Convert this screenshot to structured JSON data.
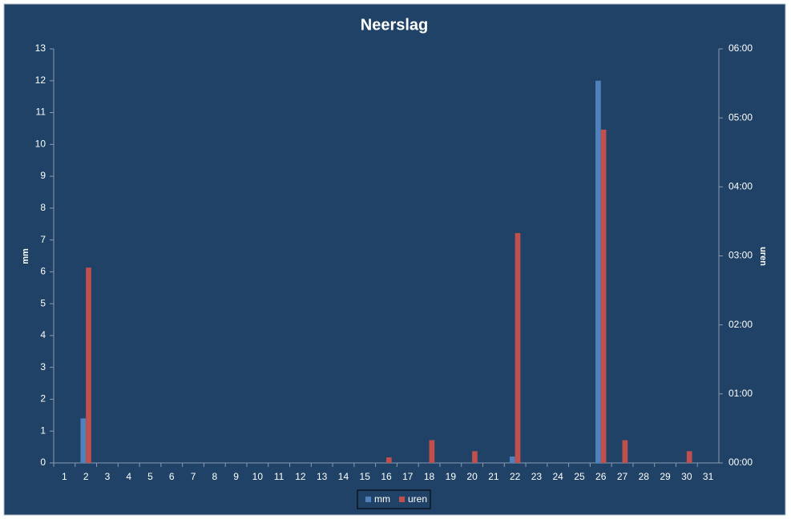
{
  "chart_data": {
    "type": "bar",
    "title": "Neerslag",
    "y_label": "mm",
    "y2_label": "uren",
    "categories": [
      "1",
      "2",
      "3",
      "4",
      "5",
      "6",
      "7",
      "8",
      "9",
      "10",
      "11",
      "12",
      "13",
      "14",
      "15",
      "16",
      "17",
      "18",
      "19",
      "20",
      "21",
      "22",
      "23",
      "24",
      "25",
      "26",
      "27",
      "28",
      "29",
      "30",
      "31"
    ],
    "series": [
      {
        "name": "mm",
        "color": "#4f81bd",
        "values": [
          0,
          1.4,
          0,
          0,
          0,
          0,
          0,
          0,
          0,
          0,
          0,
          0,
          0,
          0,
          0,
          0,
          0,
          0,
          0,
          0,
          0,
          0.2,
          0,
          0,
          0,
          12,
          0,
          0,
          0,
          0,
          0
        ]
      },
      {
        "name": "uren",
        "color": "#c0504d",
        "axis": "y2",
        "values": [
          0,
          2.83,
          0,
          0,
          0,
          0,
          0,
          0,
          0,
          0,
          0,
          0,
          0,
          0,
          0,
          0.08,
          0,
          0.33,
          0,
          0.17,
          0,
          3.33,
          0,
          0,
          0,
          4.83,
          0.33,
          0,
          0,
          0.17,
          0
        ]
      }
    ],
    "ylim": [
      0,
      13
    ],
    "yticks": [
      0,
      1,
      2,
      3,
      4,
      5,
      6,
      7,
      8,
      9,
      10,
      11,
      12,
      13
    ],
    "y2lim": [
      0,
      6
    ],
    "y2ticks": [
      {
        "value": 0,
        "label": "00:00"
      },
      {
        "value": 1,
        "label": "01:00"
      },
      {
        "value": 2,
        "label": "02:00"
      },
      {
        "value": 3,
        "label": "03:00"
      },
      {
        "value": 4,
        "label": "04:00"
      },
      {
        "value": 5,
        "label": "05:00"
      },
      {
        "value": 6,
        "label": "06:00"
      }
    ],
    "grid": false,
    "legend": "bottom"
  }
}
